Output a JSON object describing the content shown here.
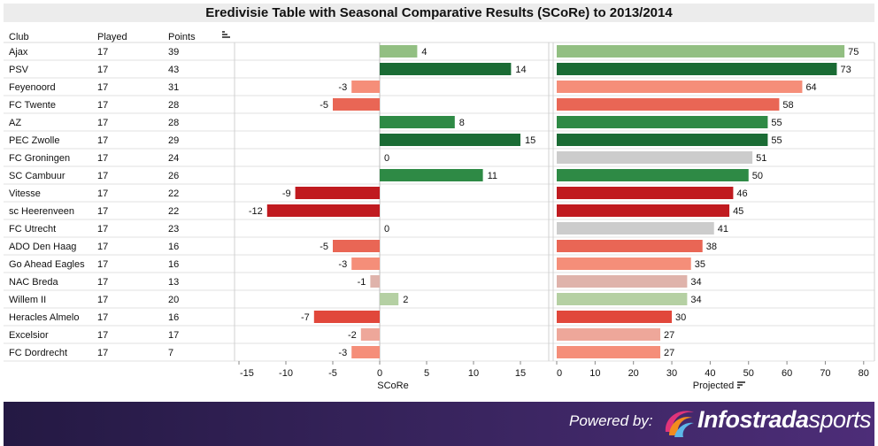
{
  "title": "Eredivisie Table with Seasonal Comparative Results (SCoRe) to 2013/2014",
  "headers": {
    "club": "Club",
    "played": "Played",
    "points": "Points"
  },
  "icons": {
    "sort_points": "sort-bars-icon",
    "sort_projected": "sort-bars-icon",
    "logo": "infostrada-swirl-icon"
  },
  "footer": {
    "powered_by": "Powered by:",
    "brand_bold": "Infostrada",
    "brand_light": "sports"
  },
  "colors": {
    "dark_green": "#1a6b34",
    "mid_green": "#2e8a45",
    "light_green": "#92bf82",
    "pale_green": "#b5d0a3",
    "grey": "#cccccc",
    "dark_red": "#c01a1f",
    "red": "#e1473b",
    "salmon": "#e96655",
    "light_salmon": "#f58e79",
    "pale_salmon": "#eea79a",
    "pale_pink": "#dfb3ab"
  },
  "chart_data": [
    {
      "type": "bar",
      "orientation": "horizontal",
      "xlabel": "SCoRe",
      "xlim": [
        -15,
        15
      ],
      "xticks": [
        -15,
        -10,
        -5,
        0,
        5,
        10,
        15
      ],
      "categories": [
        "Ajax",
        "PSV",
        "Feyenoord",
        "FC Twente",
        "AZ",
        "PEC Zwolle",
        "FC Groningen",
        "SC Cambuur",
        "Vitesse",
        "sc Heerenveen",
        "FC Utrecht",
        "ADO Den Haag",
        "Go Ahead Eagles",
        "NAC Breda",
        "Willem II",
        "Heracles Almelo",
        "Excelsior",
        "FC Dordrecht"
      ],
      "values": [
        4,
        14,
        -3,
        -5,
        8,
        15,
        0,
        11,
        -9,
        -12,
        0,
        -5,
        -3,
        -1,
        2,
        -7,
        -2,
        -3
      ]
    },
    {
      "type": "bar",
      "orientation": "horizontal",
      "xlabel": "Projected",
      "xlim": [
        0,
        80
      ],
      "xticks": [
        0,
        10,
        20,
        30,
        40,
        50,
        60,
        70,
        80
      ],
      "categories": [
        "Ajax",
        "PSV",
        "Feyenoord",
        "FC Twente",
        "AZ",
        "PEC Zwolle",
        "FC Groningen",
        "SC Cambuur",
        "Vitesse",
        "sc Heerenveen",
        "FC Utrecht",
        "ADO Den Haag",
        "Go Ahead Eagles",
        "NAC Breda",
        "Willem II",
        "Heracles Almelo",
        "Excelsior",
        "FC Dordrecht"
      ],
      "values": [
        75,
        73,
        64,
        58,
        55,
        55,
        51,
        50,
        46,
        45,
        41,
        38,
        35,
        34,
        34,
        30,
        27,
        27
      ]
    }
  ],
  "table": {
    "rows": [
      {
        "club": "Ajax",
        "played": "17",
        "points": "39"
      },
      {
        "club": "PSV",
        "played": "17",
        "points": "43"
      },
      {
        "club": "Feyenoord",
        "played": "17",
        "points": "31"
      },
      {
        "club": "FC Twente",
        "played": "17",
        "points": "28"
      },
      {
        "club": "AZ",
        "played": "17",
        "points": "28"
      },
      {
        "club": "PEC Zwolle",
        "played": "17",
        "points": "29"
      },
      {
        "club": "FC Groningen",
        "played": "17",
        "points": "24"
      },
      {
        "club": "SC Cambuur",
        "played": "17",
        "points": "26"
      },
      {
        "club": "Vitesse",
        "played": "17",
        "points": "22"
      },
      {
        "club": "sc Heerenveen",
        "played": "17",
        "points": "22"
      },
      {
        "club": "FC Utrecht",
        "played": "17",
        "points": "23"
      },
      {
        "club": "ADO Den Haag",
        "played": "17",
        "points": "16"
      },
      {
        "club": "Go Ahead Eagles",
        "played": "17",
        "points": "16"
      },
      {
        "club": "NAC Breda",
        "played": "17",
        "points": "13"
      },
      {
        "club": "Willem II",
        "played": "17",
        "points": "20"
      },
      {
        "club": "Heracles Almelo",
        "played": "17",
        "points": "16"
      },
      {
        "club": "Excelsior",
        "played": "17",
        "points": "17"
      },
      {
        "club": "FC Dordrecht",
        "played": "17",
        "points": "7"
      }
    ]
  }
}
